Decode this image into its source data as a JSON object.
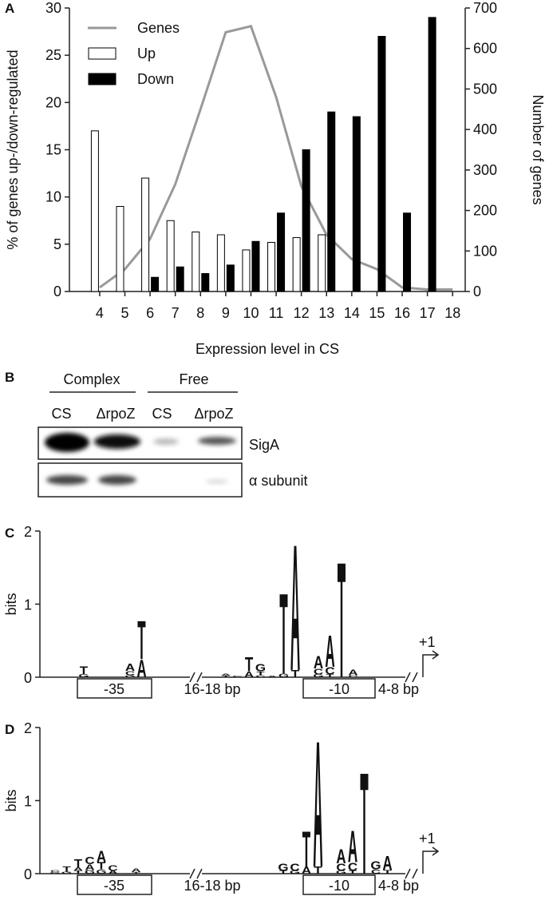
{
  "chart_data": {
    "type": "bar",
    "panel": "A",
    "x": [
      4,
      5,
      6,
      7,
      8,
      9,
      10,
      11,
      12,
      13,
      14,
      15,
      16,
      17,
      18
    ],
    "xlim": [
      2.8,
      18.5
    ],
    "xticks": [
      4,
      5,
      6,
      7,
      8,
      9,
      10,
      11,
      12,
      13,
      14,
      15,
      16,
      17,
      18
    ],
    "ylim": [
      0,
      30
    ],
    "yticks": [
      0,
      5,
      10,
      15,
      20,
      25,
      30
    ],
    "y2lim": [
      0,
      700
    ],
    "y2ticks": [
      0,
      100,
      200,
      300,
      400,
      500,
      600,
      700
    ],
    "xlabel": "Expression level in CS",
    "ylabel": "% of genes up-/down-regulated",
    "y2label": "Number of genes",
    "legend": "upper left",
    "series": [
      {
        "name": "Genes",
        "type": "line",
        "axis": "y2",
        "color": "#999999",
        "values": [
          10,
          55,
          130,
          265,
          450,
          640,
          655,
          480,
          260,
          140,
          80,
          55,
          10,
          5,
          5
        ]
      },
      {
        "name": "Up",
        "type": "bar",
        "color": "#ffffff",
        "values": [
          17,
          9,
          12,
          7.5,
          6.3,
          6,
          4.4,
          5.2,
          5.7,
          6,
          null,
          null,
          null,
          null,
          null
        ]
      },
      {
        "name": "Down",
        "type": "bar",
        "color": "#000000",
        "values": [
          null,
          null,
          1.5,
          2.6,
          1.9,
          2.8,
          5.3,
          8.3,
          15,
          19,
          18.5,
          27,
          8.3,
          29,
          null
        ]
      }
    ]
  },
  "panel_b": {
    "panel": "B",
    "groups": [
      "Complex",
      "Free"
    ],
    "lanes": [
      "CS",
      "ΔrpoZ",
      "CS",
      "ΔrpoZ"
    ],
    "rows": [
      "SigA",
      "α subunit"
    ]
  },
  "logos": [
    {
      "panel": "C",
      "ylabel": "bits",
      "ylim": [
        0,
        2
      ],
      "yticks": [
        0,
        1,
        2
      ],
      "region_labels": [
        "-35",
        "16-18 bp",
        "-10",
        "4-8 bp",
        "+1"
      ],
      "minus35": [
        {
          "letters": [
            "G",
            "T"
          ],
          "heights": [
            0.04,
            0.12
          ]
        },
        {
          "letters": [],
          "heights": []
        },
        {
          "letters": [],
          "heights": []
        },
        {
          "letters": [],
          "heights": []
        },
        {
          "letters": [
            "G",
            "C",
            "A"
          ],
          "heights": [
            0.03,
            0.06,
            0.1
          ]
        },
        {
          "letters": [
            "A",
            "T"
          ],
          "heights": [
            0.25,
            0.55
          ]
        }
      ],
      "minus10": [
        {
          "letters": [
            "T",
            "A"
          ],
          "heights": [
            0.02,
            0.03
          ]
        },
        {
          "letters": [
            "C"
          ],
          "heights": [
            0.02
          ]
        },
        {
          "letters": [
            "A",
            "T"
          ],
          "heights": [
            0.08,
            0.2
          ]
        },
        {
          "letters": [
            "C",
            "T",
            "G"
          ],
          "heights": [
            0.03,
            0.05,
            0.1
          ]
        },
        {
          "letters": [
            "A"
          ],
          "heights": [
            0.02
          ]
        },
        {
          "letters": [
            "G",
            "T"
          ],
          "heights": [
            0.05,
            1.15
          ]
        },
        {
          "letters": [
            "T",
            "A"
          ],
          "heights": [
            0.1,
            1.8
          ]
        },
        {
          "letters": [],
          "heights": []
        },
        {
          "letters": [
            "G",
            "C",
            "A"
          ],
          "heights": [
            0.04,
            0.08,
            0.18
          ]
        },
        {
          "letters": [
            "T",
            "C",
            "A"
          ],
          "heights": [
            0.04,
            0.1,
            0.45
          ]
        },
        {
          "letters": [
            "T"
          ],
          "heights": [
            1.65
          ]
        },
        {
          "letters": [
            "C",
            "A"
          ],
          "heights": [
            0.03,
            0.08
          ]
        }
      ]
    },
    {
      "panel": "D",
      "ylabel": "bits",
      "ylim": [
        0,
        2
      ],
      "yticks": [
        0,
        1,
        2
      ],
      "region_labels": [
        "-35",
        "16-18 bp",
        "-10",
        "4-8 bp",
        "+1"
      ],
      "minus35": [
        {
          "letters": [
            "G",
            "C"
          ],
          "heights": [
            0.02,
            0.03
          ]
        },
        {
          "letters": [
            "G",
            "T"
          ],
          "heights": [
            0.03,
            0.07
          ]
        },
        {
          "letters": [
            "T",
            "A",
            "T"
          ],
          "heights": [
            0.04,
            0.05,
            0.12
          ]
        },
        {
          "letters": [
            "G",
            "A",
            "C"
          ],
          "heights": [
            0.05,
            0.08,
            0.1
          ]
        },
        {
          "letters": [
            "G",
            "T",
            "A"
          ],
          "heights": [
            0.06,
            0.1,
            0.16
          ]
        },
        {
          "letters": [
            "A",
            "C"
          ],
          "heights": [
            0.04,
            0.08
          ]
        },
        {
          "letters": [],
          "heights": []
        },
        {
          "letters": [
            "T",
            "A"
          ],
          "heights": [
            0.02,
            0.05
          ]
        }
      ],
      "minus10": [
        {
          "letters": [
            "T",
            "G"
          ],
          "heights": [
            0.04,
            0.1
          ]
        },
        {
          "letters": [
            "G",
            "C"
          ],
          "heights": [
            0.04,
            0.1
          ]
        },
        {
          "letters": [
            "A",
            "T"
          ],
          "heights": [
            0.1,
            0.5
          ]
        },
        {
          "letters": [
            "T",
            "A"
          ],
          "heights": [
            0.1,
            1.8
          ]
        },
        {
          "letters": [],
          "heights": []
        },
        {
          "letters": [
            "G",
            "C",
            "A"
          ],
          "heights": [
            0.04,
            0.1,
            0.2
          ]
        },
        {
          "letters": [
            "T",
            "C",
            "A"
          ],
          "heights": [
            0.04,
            0.12,
            0.45
          ]
        },
        {
          "letters": [
            "T"
          ],
          "heights": [
            1.45
          ]
        },
        {
          "letters": [
            "C",
            "G"
          ],
          "heights": [
            0.06,
            0.12
          ]
        },
        {
          "letters": [
            "T",
            "A"
          ],
          "heights": [
            0.05,
            0.2
          ]
        }
      ]
    }
  ]
}
